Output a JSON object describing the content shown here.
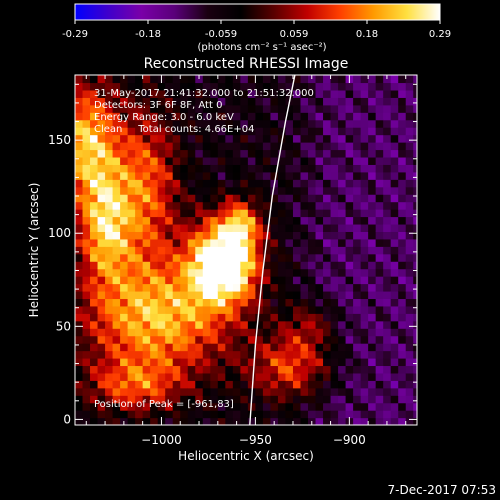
{
  "colorbar": {
    "ticks": [
      "-0.29",
      "-0.18",
      "-0.059",
      "0.059",
      "0.18",
      "0.29"
    ],
    "unit_label": "(photons cm⁻² s⁻¹ asec⁻²)",
    "colors": [
      "#0000ff",
      "#3f00cc",
      "#7a00a8",
      "#5a007a",
      "#1a0010",
      "#000000",
      "#5a0000",
      "#c00000",
      "#ff4000",
      "#ff9a00",
      "#ffe040",
      "#ffffff"
    ],
    "range": [
      -0.29,
      0.29
    ]
  },
  "chart_data": {
    "type": "heatmap",
    "title": "Reconstructed RHESSI Image",
    "xlabel": "Heliocentric X (arcsec)",
    "ylabel": "Heliocentric Y (arcsec)",
    "xlim": [
      -1046,
      -864
    ],
    "ylim": [
      -3,
      185
    ],
    "x_ticks": [
      "−1000",
      "−950",
      "−900"
    ],
    "x_tick_values": [
      -1000,
      -950,
      -900
    ],
    "y_ticks": [
      "0",
      "50",
      "100",
      "150"
    ],
    "y_tick_values": [
      0,
      50,
      100,
      150
    ],
    "annotations": [
      "31-May-2017 21:41:32.000 to 21:51:32.000",
      "Detectors: 3F 6F 8F, Att 0",
      "Energy Range: 3.0 - 6.0 keV",
      "Clean     Total counts: 4.66E+04"
    ],
    "peak_label": "Position of Peak = [-961,83]",
    "peak_position": [
      -961,
      83
    ],
    "limb_curve": [
      [
        -953,
        -3
      ],
      [
        -950,
        40
      ],
      [
        -946,
        80
      ],
      [
        -941,
        120
      ],
      [
        -934,
        160
      ],
      [
        -929,
        185
      ]
    ],
    "sources": [
      {
        "x": -1040,
        "y": 150,
        "sx": 12,
        "sy": 22,
        "amp": 0.27
      },
      {
        "x": -1030,
        "y": 105,
        "sx": 10,
        "sy": 22,
        "amp": 0.26
      },
      {
        "x": -1008,
        "y": 125,
        "sx": 12,
        "sy": 30,
        "amp": 0.2
      },
      {
        "x": -1002,
        "y": 55,
        "sx": 28,
        "sy": 22,
        "amp": 0.27
      },
      {
        "x": -975,
        "y": 85,
        "sx": 10,
        "sy": 16,
        "amp": 0.23
      },
      {
        "x": -961,
        "y": 83,
        "sx": 10,
        "sy": 14,
        "amp": 0.29
      },
      {
        "x": -958,
        "y": 105,
        "sx": 8,
        "sy": 10,
        "amp": 0.22
      },
      {
        "x": -930,
        "y": 28,
        "sx": 16,
        "sy": 12,
        "amp": 0.18
      },
      {
        "x": -920,
        "y": 50,
        "sx": 10,
        "sy": 10,
        "amp": 0.12
      },
      {
        "x": -1015,
        "y": 18,
        "sx": 18,
        "sy": 10,
        "amp": 0.16
      }
    ]
  },
  "footer": {
    "date": "7-Dec-2017 07:53"
  }
}
